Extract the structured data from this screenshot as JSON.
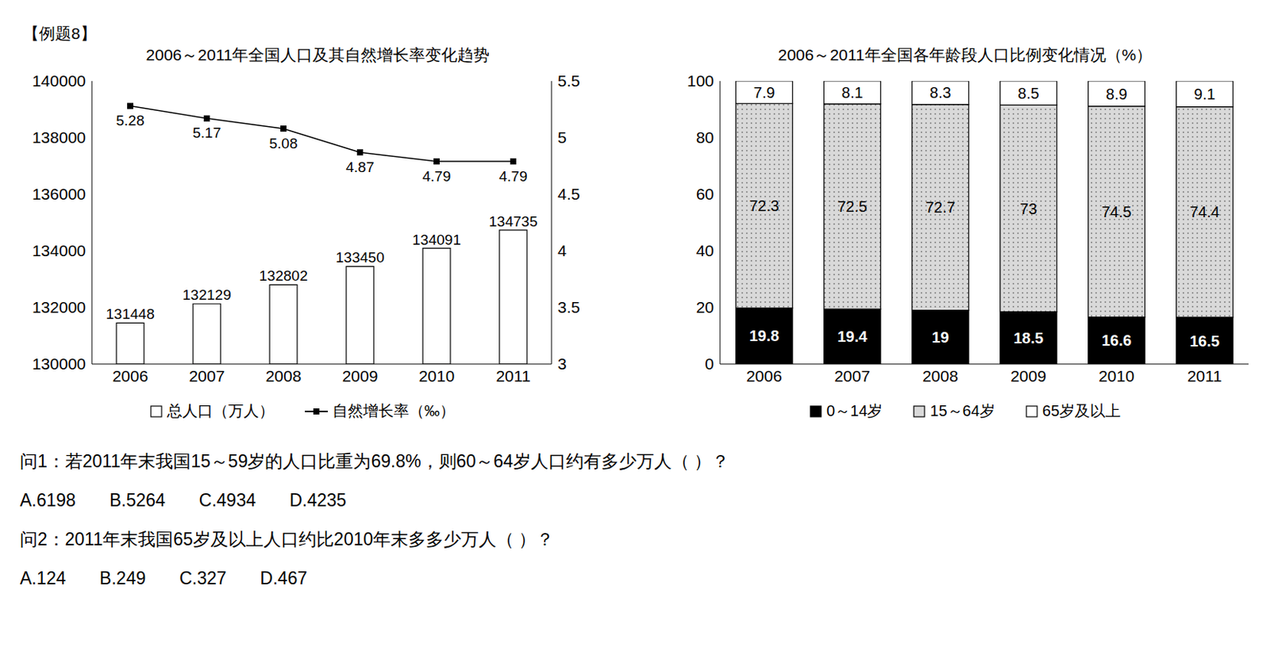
{
  "title": "【例题8】",
  "chart_data": [
    {
      "type": "bar",
      "title": "2006～2011年全国人口及其自然增长率变化趋势",
      "categories": [
        "2006",
        "2007",
        "2008",
        "2009",
        "2010",
        "2011"
      ],
      "series": [
        {
          "name": "总人口（万人）",
          "type": "bar",
          "color": "#ffffff",
          "values": [
            131448,
            132129,
            132802,
            133450,
            134091,
            134735
          ]
        },
        {
          "name": "自然增长率（‰）",
          "type": "line",
          "color": "#000000",
          "marker": "square",
          "axis": "y2",
          "values": [
            5.28,
            5.17,
            5.08,
            4.87,
            4.79,
            4.79
          ]
        }
      ],
      "ylim": [
        130000,
        140000
      ],
      "yticks": [
        130000,
        132000,
        134000,
        136000,
        138000,
        140000
      ],
      "y2lim": [
        3,
        5.5
      ],
      "y2ticks": [
        3,
        3.5,
        4,
        4.5,
        5,
        5.5
      ],
      "data_labels": true,
      "legend": "bottom",
      "grid": false
    },
    {
      "type": "bar",
      "stacked": true,
      "title": "2006～2011年全国各年龄段人口比例变化情况（%）",
      "categories": [
        "2006",
        "2007",
        "2008",
        "2009",
        "2010",
        "2011"
      ],
      "series": [
        {
          "name": "0～14岁",
          "color": "#000000",
          "values": [
            19.8,
            19.4,
            19.0,
            18.5,
            16.6,
            16.5
          ]
        },
        {
          "name": "15～64岁",
          "color": "#d9d9d9",
          "values": [
            72.3,
            72.5,
            72.7,
            73.0,
            74.5,
            74.4
          ]
        },
        {
          "name": "65岁及以上",
          "color": "#ffffff",
          "values": [
            7.9,
            8.1,
            8.3,
            8.5,
            8.9,
            9.1
          ]
        }
      ],
      "ylim": [
        0,
        100
      ],
      "yticks": [
        0,
        20,
        40,
        60,
        80,
        100
      ],
      "data_labels": true,
      "legend": "bottom",
      "grid": false
    }
  ],
  "questions": [
    {
      "text": "问1：若2011年末我国15～59岁的人口比重为69.8%，则60～64岁人口约有多少万人（ ）？",
      "options": [
        "A.6198",
        "B.5264",
        "C.4934",
        "D.4235"
      ]
    },
    {
      "text": "问2：2011年末我国65岁及以上人口约比2010年末多多少万人（ ）？",
      "options": [
        "A.124",
        "B.249",
        "C.327",
        "D.467"
      ]
    }
  ]
}
